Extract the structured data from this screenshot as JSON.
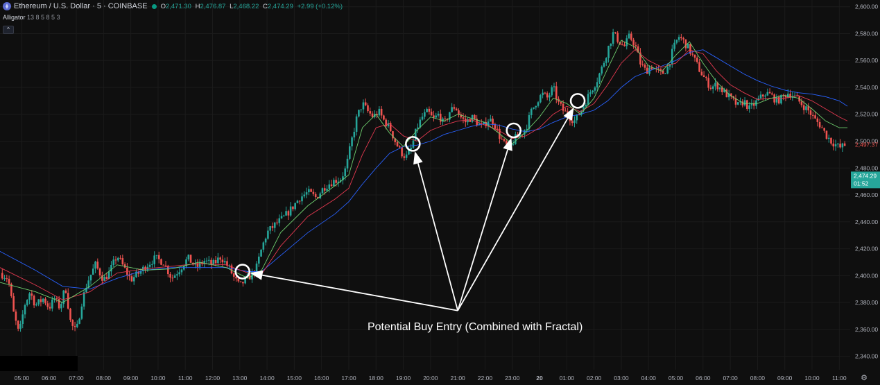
{
  "header": {
    "symbol": "Ethereum / U.S. Dollar · 5 · COINBASE",
    "o_label": "O",
    "o_value": "2,471.30",
    "h_label": "H",
    "h_value": "2,476.87",
    "l_label": "L",
    "l_value": "2,468.22",
    "c_label": "C",
    "c_value": "2,474.29",
    "change": "+2.99 (+0.12%)"
  },
  "indicator": {
    "name": "Alligator",
    "params": "13 8 5 8 5 3"
  },
  "colors": {
    "up": "#26a69a",
    "down": "#ef5350",
    "jaw": "#2962ff",
    "teeth": "#e53950",
    "lips": "#6fcf6f",
    "annotation": "#ffffff",
    "price_badge": "#26a69a",
    "prev_badge": "#ef5350"
  },
  "chart_data": {
    "type": "candlestick",
    "ylim": [
      2330,
      2605
    ],
    "y_ticks": [
      "2,340.00",
      "2,360.00",
      "2,380.00",
      "2,400.00",
      "2,420.00",
      "2,440.00",
      "2,460.00",
      "2,480.00",
      "2,500.00",
      "2,520.00",
      "2,540.00",
      "2,560.00",
      "2,580.00",
      "2,600.00"
    ],
    "y_tick_values": [
      2340,
      2360,
      2380,
      2400,
      2420,
      2440,
      2460,
      2480,
      2500,
      2520,
      2540,
      2560,
      2580,
      2600
    ],
    "x_ticks": [
      "05:00",
      "06:00",
      "07:00",
      "08:00",
      "09:00",
      "10:00",
      "11:00",
      "12:00",
      "13:00",
      "14:00",
      "15:00",
      "16:00",
      "17:00",
      "18:00",
      "19:00",
      "20:00",
      "21:00",
      "22:00",
      "23:00",
      "20",
      "01:00",
      "02:00",
      "03:00",
      "04:00",
      "05:00",
      "06:00",
      "07:00",
      "08:00",
      "09:00",
      "10:00",
      "11:00"
    ],
    "x_tick_hours": [
      0,
      1,
      2,
      3,
      4,
      5,
      6,
      7,
      8,
      9,
      10,
      11,
      12,
      13,
      14,
      15,
      16,
      17,
      18,
      19,
      20,
      21,
      22,
      23,
      24,
      25,
      26,
      27,
      28,
      29,
      30
    ],
    "x_range_hours": [
      -0.8,
      30.4
    ],
    "close_path": [
      [
        -0.8,
        2402
      ],
      [
        -0.5,
        2398
      ],
      [
        -0.3,
        2372
      ],
      [
        -0.1,
        2356
      ],
      [
        0.1,
        2378
      ],
      [
        0.3,
        2388
      ],
      [
        0.5,
        2378
      ],
      [
        0.8,
        2383
      ],
      [
        1.0,
        2376
      ],
      [
        1.2,
        2383
      ],
      [
        1.4,
        2376
      ],
      [
        1.6,
        2392
      ],
      [
        1.8,
        2364
      ],
      [
        2.0,
        2358
      ],
      [
        2.2,
        2380
      ],
      [
        2.4,
        2395
      ],
      [
        2.7,
        2408
      ],
      [
        3.0,
        2397
      ],
      [
        3.2,
        2402
      ],
      [
        3.5,
        2415
      ],
      [
        3.8,
        2404
      ],
      [
        4.0,
        2397
      ],
      [
        4.3,
        2402
      ],
      [
        4.6,
        2408
      ],
      [
        4.9,
        2413
      ],
      [
        5.2,
        2410
      ],
      [
        5.5,
        2398
      ],
      [
        5.8,
        2405
      ],
      [
        6.1,
        2413
      ],
      [
        6.4,
        2406
      ],
      [
        6.7,
        2411
      ],
      [
        7.0,
        2408
      ],
      [
        7.3,
        2414
      ],
      [
        7.6,
        2406
      ],
      [
        7.8,
        2398
      ],
      [
        8.0,
        2392
      ],
      [
        8.2,
        2397
      ],
      [
        8.4,
        2400
      ],
      [
        8.6,
        2405
      ],
      [
        8.8,
        2420
      ],
      [
        9.0,
        2432
      ],
      [
        9.3,
        2438
      ],
      [
        9.6,
        2443
      ],
      [
        9.9,
        2450
      ],
      [
        10.2,
        2458
      ],
      [
        10.5,
        2462
      ],
      [
        10.8,
        2458
      ],
      [
        11.1,
        2466
      ],
      [
        11.4,
        2470
      ],
      [
        11.7,
        2472
      ],
      [
        11.9,
        2480
      ],
      [
        12.1,
        2500
      ],
      [
        12.3,
        2518
      ],
      [
        12.5,
        2528
      ],
      [
        12.7,
        2522
      ],
      [
        12.9,
        2518
      ],
      [
        13.1,
        2522
      ],
      [
        13.3,
        2515
      ],
      [
        13.5,
        2510
      ],
      [
        13.7,
        2500
      ],
      [
        13.9,
        2492
      ],
      [
        14.1,
        2488
      ],
      [
        14.3,
        2495
      ],
      [
        14.5,
        2510
      ],
      [
        14.7,
        2518
      ],
      [
        14.9,
        2522
      ],
      [
        15.1,
        2516
      ],
      [
        15.3,
        2520
      ],
      [
        15.5,
        2512
      ],
      [
        15.7,
        2522
      ],
      [
        15.9,
        2526
      ],
      [
        16.1,
        2518
      ],
      [
        16.3,
        2514
      ],
      [
        16.5,
        2518
      ],
      [
        16.7,
        2514
      ],
      [
        16.9,
        2510
      ],
      [
        17.1,
        2516
      ],
      [
        17.3,
        2515
      ],
      [
        17.5,
        2505
      ],
      [
        17.7,
        2498
      ],
      [
        17.9,
        2495
      ],
      [
        18.1,
        2502
      ],
      [
        18.3,
        2505
      ],
      [
        18.5,
        2510
      ],
      [
        18.7,
        2522
      ],
      [
        18.9,
        2530
      ],
      [
        19.1,
        2535
      ],
      [
        19.3,
        2532
      ],
      [
        19.5,
        2540
      ],
      [
        19.7,
        2528
      ],
      [
        19.9,
        2522
      ],
      [
        20.1,
        2518
      ],
      [
        20.3,
        2515
      ],
      [
        20.5,
        2522
      ],
      [
        20.7,
        2530
      ],
      [
        20.9,
        2538
      ],
      [
        21.1,
        2545
      ],
      [
        21.3,
        2555
      ],
      [
        21.5,
        2568
      ],
      [
        21.7,
        2580
      ],
      [
        21.9,
        2575
      ],
      [
        22.1,
        2570
      ],
      [
        22.3,
        2578
      ],
      [
        22.5,
        2572
      ],
      [
        22.7,
        2558
      ],
      [
        22.9,
        2552
      ],
      [
        23.1,
        2556
      ],
      [
        23.3,
        2552
      ],
      [
        23.5,
        2550
      ],
      [
        23.7,
        2555
      ],
      [
        23.9,
        2568
      ],
      [
        24.1,
        2578
      ],
      [
        24.3,
        2574
      ],
      [
        24.5,
        2568
      ],
      [
        24.7,
        2560
      ],
      [
        24.9,
        2552
      ],
      [
        25.1,
        2545
      ],
      [
        25.3,
        2540
      ],
      [
        25.5,
        2542
      ],
      [
        25.7,
        2538
      ],
      [
        25.9,
        2534
      ],
      [
        26.1,
        2530
      ],
      [
        26.3,
        2526
      ],
      [
        26.5,
        2530
      ],
      [
        26.7,
        2524
      ],
      [
        26.9,
        2528
      ],
      [
        27.1,
        2532
      ],
      [
        27.3,
        2536
      ],
      [
        27.5,
        2534
      ],
      [
        27.7,
        2530
      ],
      [
        27.9,
        2532
      ],
      [
        28.1,
        2536
      ],
      [
        28.3,
        2534
      ],
      [
        28.5,
        2530
      ],
      [
        28.7,
        2526
      ],
      [
        28.9,
        2522
      ],
      [
        29.1,
        2516
      ],
      [
        29.3,
        2512
      ],
      [
        29.5,
        2505
      ],
      [
        29.7,
        2500
      ],
      [
        29.9,
        2497
      ],
      [
        30.0,
        2495
      ],
      [
        30.2,
        2497
      ]
    ],
    "series": [
      {
        "name": "Alligator Jaw",
        "points": [
          [
            -0.8,
            2418
          ],
          [
            0.5,
            2404
          ],
          [
            1.5,
            2392
          ],
          [
            2.5,
            2390
          ],
          [
            3.5,
            2398
          ],
          [
            4.5,
            2404
          ],
          [
            5.5,
            2406
          ],
          [
            6.5,
            2406
          ],
          [
            7.5,
            2406
          ],
          [
            8.3,
            2403
          ],
          [
            8.8,
            2403
          ],
          [
            9.5,
            2415
          ],
          [
            10.5,
            2432
          ],
          [
            11.5,
            2446
          ],
          [
            12.0,
            2455
          ],
          [
            12.5,
            2468
          ],
          [
            13.0,
            2480
          ],
          [
            13.5,
            2491
          ],
          [
            14.0,
            2496
          ],
          [
            14.5,
            2497
          ],
          [
            15.0,
            2500
          ],
          [
            15.5,
            2505
          ],
          [
            16.0,
            2508
          ],
          [
            16.5,
            2511
          ],
          [
            17.0,
            2513
          ],
          [
            17.5,
            2512
          ],
          [
            18.0,
            2509
          ],
          [
            18.5,
            2507
          ],
          [
            19.0,
            2509
          ],
          [
            19.5,
            2514
          ],
          [
            20.0,
            2518
          ],
          [
            20.5,
            2520
          ],
          [
            21.0,
            2523
          ],
          [
            21.5,
            2530
          ],
          [
            22.0,
            2540
          ],
          [
            22.5,
            2548
          ],
          [
            23.0,
            2552
          ],
          [
            23.5,
            2556
          ],
          [
            24.0,
            2560
          ],
          [
            24.5,
            2566
          ],
          [
            25.0,
            2568
          ],
          [
            25.5,
            2562
          ],
          [
            26.0,
            2556
          ],
          [
            26.5,
            2550
          ],
          [
            27.0,
            2545
          ],
          [
            27.5,
            2541
          ],
          [
            28.0,
            2538
          ],
          [
            28.5,
            2536
          ],
          [
            29.0,
            2535
          ],
          [
            29.5,
            2533
          ],
          [
            30.0,
            2530
          ],
          [
            30.3,
            2526
          ]
        ]
      },
      {
        "name": "Alligator Teeth",
        "points": [
          [
            -0.8,
            2406
          ],
          [
            0.5,
            2393
          ],
          [
            1.5,
            2382
          ],
          [
            2.5,
            2388
          ],
          [
            3.5,
            2402
          ],
          [
            4.5,
            2405
          ],
          [
            5.5,
            2407
          ],
          [
            6.5,
            2409
          ],
          [
            7.5,
            2408
          ],
          [
            8.3,
            2402
          ],
          [
            8.8,
            2401
          ],
          [
            9.5,
            2422
          ],
          [
            10.5,
            2444
          ],
          [
            11.5,
            2457
          ],
          [
            12.0,
            2465
          ],
          [
            12.5,
            2490
          ],
          [
            13.0,
            2510
          ],
          [
            13.5,
            2513
          ],
          [
            14.0,
            2504
          ],
          [
            14.5,
            2500
          ],
          [
            15.0,
            2508
          ],
          [
            15.5,
            2512
          ],
          [
            16.0,
            2515
          ],
          [
            16.5,
            2516
          ],
          [
            17.0,
            2512
          ],
          [
            17.5,
            2508
          ],
          [
            18.0,
            2502
          ],
          [
            18.5,
            2504
          ],
          [
            19.0,
            2510
          ],
          [
            19.5,
            2520
          ],
          [
            20.0,
            2526
          ],
          [
            20.5,
            2522
          ],
          [
            21.0,
            2528
          ],
          [
            21.5,
            2542
          ],
          [
            22.0,
            2558
          ],
          [
            22.5,
            2568
          ],
          [
            23.0,
            2560
          ],
          [
            23.5,
            2555
          ],
          [
            24.0,
            2558
          ],
          [
            24.5,
            2568
          ],
          [
            25.0,
            2565
          ],
          [
            25.5,
            2552
          ],
          [
            26.0,
            2542
          ],
          [
            26.5,
            2536
          ],
          [
            27.0,
            2531
          ],
          [
            27.5,
            2532
          ],
          [
            28.0,
            2532
          ],
          [
            28.5,
            2534
          ],
          [
            29.0,
            2530
          ],
          [
            29.5,
            2524
          ],
          [
            30.0,
            2518
          ],
          [
            30.3,
            2515
          ]
        ]
      },
      {
        "name": "Alligator Lips",
        "points": [
          [
            -0.8,
            2395
          ],
          [
            0.5,
            2388
          ],
          [
            1.5,
            2380
          ],
          [
            2.5,
            2392
          ],
          [
            3.5,
            2408
          ],
          [
            4.5,
            2404
          ],
          [
            5.5,
            2405
          ],
          [
            6.5,
            2410
          ],
          [
            7.5,
            2406
          ],
          [
            8.3,
            2398
          ],
          [
            8.8,
            2404
          ],
          [
            9.5,
            2432
          ],
          [
            10.5,
            2452
          ],
          [
            11.5,
            2467
          ],
          [
            12.0,
            2475
          ],
          [
            12.5,
            2510
          ],
          [
            13.0,
            2520
          ],
          [
            13.5,
            2506
          ],
          [
            14.0,
            2496
          ],
          [
            14.5,
            2508
          ],
          [
            15.0,
            2518
          ],
          [
            15.5,
            2515
          ],
          [
            16.0,
            2520
          ],
          [
            16.5,
            2517
          ],
          [
            17.0,
            2514
          ],
          [
            17.5,
            2506
          ],
          [
            18.0,
            2498
          ],
          [
            18.5,
            2507
          ],
          [
            19.0,
            2518
          ],
          [
            19.5,
            2532
          ],
          [
            20.0,
            2528
          ],
          [
            20.5,
            2520
          ],
          [
            21.0,
            2532
          ],
          [
            21.5,
            2554
          ],
          [
            22.0,
            2575
          ],
          [
            22.5,
            2570
          ],
          [
            23.0,
            2556
          ],
          [
            23.5,
            2552
          ],
          [
            24.0,
            2564
          ],
          [
            24.5,
            2574
          ],
          [
            25.0,
            2558
          ],
          [
            25.5,
            2544
          ],
          [
            26.0,
            2534
          ],
          [
            26.5,
            2528
          ],
          [
            27.0,
            2528
          ],
          [
            27.5,
            2532
          ],
          [
            28.0,
            2534
          ],
          [
            28.5,
            2532
          ],
          [
            29.0,
            2524
          ],
          [
            29.5,
            2515
          ],
          [
            30.0,
            2510
          ],
          [
            30.3,
            2510
          ]
        ]
      }
    ],
    "markers": [
      {
        "x_hour": 8.1,
        "y": 2403
      },
      {
        "x_hour": 14.35,
        "y": 2498
      },
      {
        "x_hour": 18.05,
        "y": 2508
      },
      {
        "x_hour": 20.4,
        "y": 2530
      }
    ],
    "annotation": {
      "text": "Potential Buy Entry (Combined with Fractal)",
      "x_hour": 16.0,
      "y": 2362
    },
    "last_price": {
      "value": "2,474.29",
      "countdown": "01:52",
      "y": 2474.29
    },
    "prev_price": {
      "value": "2,497.37",
      "y": 2497.37
    }
  },
  "ui": {
    "collapse_glyph": "^",
    "gear_glyph": "⚙"
  }
}
